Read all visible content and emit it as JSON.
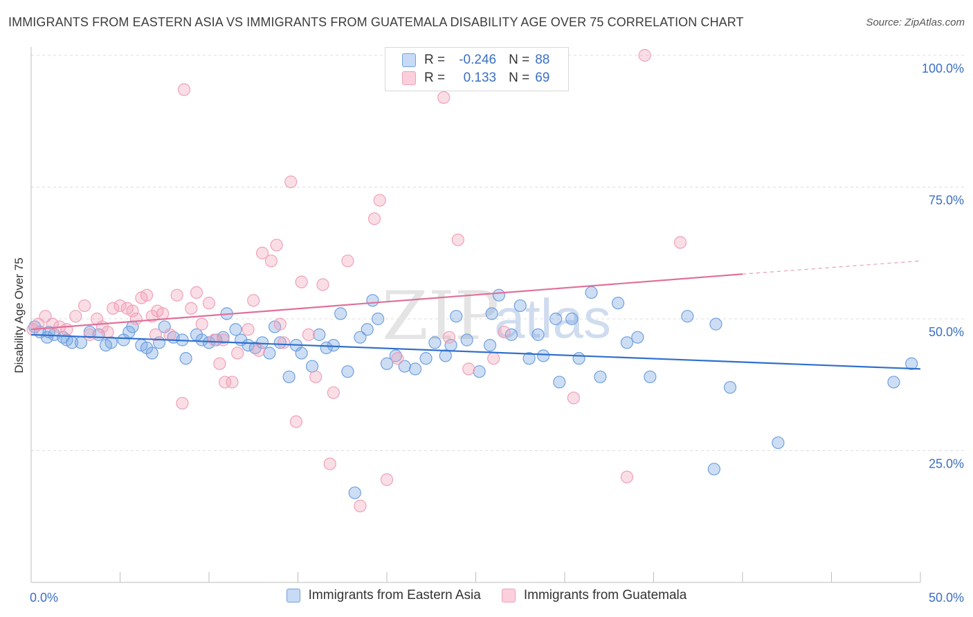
{
  "header": {
    "title": "IMMIGRANTS FROM EASTERN ASIA VS IMMIGRANTS FROM GUATEMALA DISABILITY AGE OVER 75 CORRELATION CHART",
    "source": "Source: ZipAtlas.com"
  },
  "colors": {
    "blue": "#6fa0e0",
    "blue_line": "#2f6fcc",
    "pink": "#f0a0b8",
    "pink_line": "#e0709a",
    "tick_text": "#3a6fc4"
  },
  "legend": {
    "rows": [
      {
        "r_label": "R =",
        "r_value": "-0.246",
        "n_label": "N =",
        "n_value": "88"
      },
      {
        "r_label": "R =",
        "r_value": "0.133",
        "n_label": "N =",
        "n_value": "69"
      }
    ]
  },
  "watermark": {
    "zip": "ZIP",
    "atlas": "atlas"
  },
  "chart_data": {
    "type": "scatter",
    "xlabel": "",
    "ylabel": "Disability Age Over 75",
    "xlim": [
      0,
      50
    ],
    "ylim": [
      0,
      100
    ],
    "x_tick_labels": [
      "0.0%",
      "50.0%"
    ],
    "y_ticks": [
      25,
      50,
      75,
      100
    ],
    "y_tick_labels": [
      "25.0%",
      "50.0%",
      "75.0%",
      "100.0%"
    ],
    "grid": "horizontal-dashed",
    "series": [
      {
        "name": "Immigrants from Eastern Asia",
        "color": "blue",
        "trend": {
          "x": [
            0,
            50
          ],
          "y": [
            47.0,
            40.5
          ]
        },
        "points": [
          [
            0.2,
            48.5
          ],
          [
            0.5,
            47.5
          ],
          [
            0.9,
            46.5
          ],
          [
            1.3,
            47.0
          ],
          [
            1.8,
            46.5
          ],
          [
            2.3,
            45.5
          ],
          [
            2.8,
            45.5
          ],
          [
            3.3,
            47.5
          ],
          [
            3.8,
            47.0
          ],
          [
            4.2,
            45.0
          ],
          [
            4.5,
            45.5
          ],
          [
            5.2,
            46.0
          ],
          [
            5.5,
            47.5
          ],
          [
            5.7,
            48.5
          ],
          [
            6.2,
            45.0
          ],
          [
            6.5,
            44.5
          ],
          [
            6.8,
            43.5
          ],
          [
            7.2,
            45.5
          ],
          [
            7.5,
            48.5
          ],
          [
            8.0,
            46.5
          ],
          [
            8.5,
            46.0
          ],
          [
            8.7,
            42.5
          ],
          [
            9.3,
            47.0
          ],
          [
            9.6,
            46.0
          ],
          [
            10.0,
            45.5
          ],
          [
            10.4,
            46.0
          ],
          [
            10.8,
            46.5
          ],
          [
            11.0,
            51.0
          ],
          [
            11.5,
            48.0
          ],
          [
            11.8,
            46.0
          ],
          [
            12.2,
            45.0
          ],
          [
            12.6,
            44.5
          ],
          [
            13.0,
            45.5
          ],
          [
            13.4,
            43.5
          ],
          [
            13.7,
            48.5
          ],
          [
            14.0,
            45.5
          ],
          [
            14.5,
            39.0
          ],
          [
            14.9,
            45.0
          ],
          [
            15.2,
            43.5
          ],
          [
            15.8,
            41.0
          ],
          [
            16.2,
            47.0
          ],
          [
            16.6,
            44.5
          ],
          [
            17.0,
            45.0
          ],
          [
            17.4,
            51.0
          ],
          [
            17.8,
            40.0
          ],
          [
            18.5,
            46.5
          ],
          [
            18.9,
            48.0
          ],
          [
            19.2,
            53.5
          ],
          [
            19.5,
            50.0
          ],
          [
            20.0,
            41.5
          ],
          [
            20.5,
            43.0
          ],
          [
            21.0,
            41.0
          ],
          [
            21.6,
            40.5
          ],
          [
            22.2,
            42.5
          ],
          [
            22.7,
            45.5
          ],
          [
            23.3,
            43.0
          ],
          [
            23.6,
            45.0
          ],
          [
            23.9,
            50.5
          ],
          [
            24.5,
            46.0
          ],
          [
            25.2,
            40.0
          ],
          [
            25.8,
            45.0
          ],
          [
            25.9,
            51.0
          ],
          [
            26.3,
            54.5
          ],
          [
            27.0,
            47.0
          ],
          [
            27.5,
            52.5
          ],
          [
            28.0,
            42.5
          ],
          [
            28.5,
            47.0
          ],
          [
            28.8,
            43.0
          ],
          [
            29.5,
            50.0
          ],
          [
            29.7,
            38.0
          ],
          [
            30.4,
            50.0
          ],
          [
            30.8,
            42.5
          ],
          [
            31.5,
            55.0
          ],
          [
            32.0,
            39.0
          ],
          [
            33.0,
            53.0
          ],
          [
            33.5,
            45.5
          ],
          [
            34.1,
            46.5
          ],
          [
            34.8,
            39.0
          ],
          [
            36.9,
            50.5
          ],
          [
            38.4,
            21.5
          ],
          [
            38.5,
            49.0
          ],
          [
            39.3,
            37.0
          ],
          [
            42.0,
            26.5
          ],
          [
            18.2,
            17.0
          ],
          [
            48.5,
            38.0
          ],
          [
            49.5,
            41.5
          ],
          [
            1.0,
            47.5
          ],
          [
            2.0,
            46.0
          ]
        ]
      },
      {
        "name": "Immigrants from Guatemala",
        "color": "pink",
        "trend": {
          "x": [
            0,
            40
          ],
          "y": [
            48.0,
            58.5
          ]
        },
        "trend_dashed": {
          "x": [
            40,
            50
          ],
          "y": [
            58.5,
            61.0
          ]
        },
        "points": [
          [
            0.1,
            48.0
          ],
          [
            0.4,
            49.0
          ],
          [
            0.8,
            50.5
          ],
          [
            1.2,
            49.0
          ],
          [
            1.6,
            48.5
          ],
          [
            2.0,
            48.0
          ],
          [
            2.5,
            50.5
          ],
          [
            3.0,
            52.5
          ],
          [
            3.3,
            47.0
          ],
          [
            3.7,
            50.0
          ],
          [
            4.0,
            48.5
          ],
          [
            4.3,
            47.5
          ],
          [
            4.6,
            52.0
          ],
          [
            5.0,
            52.5
          ],
          [
            5.4,
            52.0
          ],
          [
            5.7,
            51.5
          ],
          [
            5.9,
            50.0
          ],
          [
            6.2,
            54.0
          ],
          [
            6.5,
            54.5
          ],
          [
            6.8,
            50.5
          ],
          [
            7.1,
            51.5
          ],
          [
            7.4,
            51.0
          ],
          [
            7.8,
            47.0
          ],
          [
            8.2,
            54.5
          ],
          [
            8.5,
            34.0
          ],
          [
            8.6,
            93.5
          ],
          [
            9.0,
            52.0
          ],
          [
            9.3,
            55.0
          ],
          [
            9.6,
            49.0
          ],
          [
            10.0,
            53.0
          ],
          [
            10.3,
            46.0
          ],
          [
            10.6,
            41.5
          ],
          [
            10.9,
            38.0
          ],
          [
            11.3,
            38.0
          ],
          [
            11.6,
            43.5
          ],
          [
            12.2,
            48.0
          ],
          [
            12.5,
            53.5
          ],
          [
            13.0,
            62.5
          ],
          [
            13.5,
            61.0
          ],
          [
            13.8,
            64.0
          ],
          [
            14.2,
            45.5
          ],
          [
            14.6,
            76.0
          ],
          [
            14.9,
            30.5
          ],
          [
            15.2,
            57.0
          ],
          [
            15.6,
            47.0
          ],
          [
            16.0,
            39.0
          ],
          [
            16.4,
            56.5
          ],
          [
            16.8,
            22.5
          ],
          [
            17.0,
            36.0
          ],
          [
            17.8,
            61.0
          ],
          [
            18.5,
            14.5
          ],
          [
            19.3,
            69.0
          ],
          [
            19.6,
            72.5
          ],
          [
            20.0,
            19.5
          ],
          [
            20.6,
            42.5
          ],
          [
            23.2,
            92.0
          ],
          [
            23.5,
            46.5
          ],
          [
            24.0,
            65.0
          ],
          [
            24.6,
            40.5
          ],
          [
            26.0,
            42.5
          ],
          [
            26.6,
            47.5
          ],
          [
            30.5,
            35.0
          ],
          [
            33.5,
            20.0
          ],
          [
            34.5,
            100.0
          ],
          [
            36.5,
            64.5
          ],
          [
            10.8,
            46.0
          ],
          [
            7.0,
            47.0
          ],
          [
            12.8,
            44.0
          ],
          [
            14.0,
            49.0
          ]
        ]
      }
    ]
  }
}
